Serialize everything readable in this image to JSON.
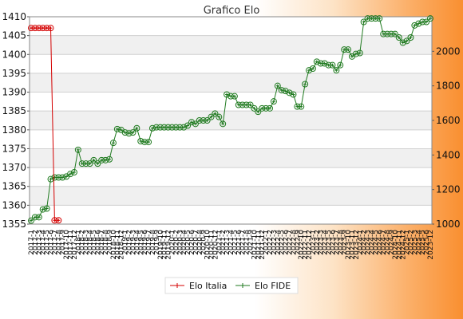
{
  "chart_data": {
    "type": "line",
    "title": "Grafico Elo",
    "xlabel": "",
    "ylabel": "",
    "y_left_ticks": [
      1355,
      1360,
      1365,
      1370,
      1375,
      1380,
      1385,
      1390,
      1395,
      1400,
      1405,
      1410
    ],
    "y_left_range": [
      1355,
      1410
    ],
    "y_right_ticks": [
      1000,
      1200,
      1400,
      1600,
      1800,
      2000
    ],
    "y_right_range": [
      1000,
      2200
    ],
    "x_first_label": "2017-1",
    "x_last_label": "2023-12",
    "legend_position": "bottom",
    "series": [
      {
        "name": "Elo Italia",
        "axis": "left",
        "color": "#d40000",
        "values": [
          1407,
          1407,
          1407,
          1407,
          1407,
          1407,
          1356,
          1356
        ]
      },
      {
        "name": "Elo FIDE",
        "axis": "right",
        "color": "#1f7a1f",
        "values": [
          1020,
          1040,
          1040,
          1085,
          1090,
          1260,
          1270,
          1270,
          1270,
          1275,
          1290,
          1300,
          1430,
          1350,
          1350,
          1350,
          1370,
          1350,
          1370,
          1370,
          1375,
          1470,
          1550,
          1545,
          1530,
          1525,
          1530,
          1555,
          1480,
          1475,
          1475,
          1555,
          1560,
          1560,
          1560,
          1560,
          1560,
          1560,
          1560,
          1560,
          1570,
          1590,
          1580,
          1600,
          1600,
          1600,
          1620,
          1640,
          1620,
          1580,
          1750,
          1740,
          1740,
          1690,
          1690,
          1690,
          1690,
          1670,
          1650,
          1670,
          1670,
          1670,
          1710,
          1800,
          1775,
          1770,
          1760,
          1750,
          1680,
          1680,
          1810,
          1890,
          1900,
          1940,
          1930,
          1930,
          1920,
          1920,
          1890,
          1920,
          2010,
          2010,
          1970,
          1985,
          1990,
          2170,
          2190,
          2190,
          2190,
          2190,
          2100,
          2100,
          2100,
          2100,
          2080,
          2050,
          2060,
          2080,
          2150,
          2160,
          2170,
          2170,
          2190
        ]
      }
    ]
  }
}
